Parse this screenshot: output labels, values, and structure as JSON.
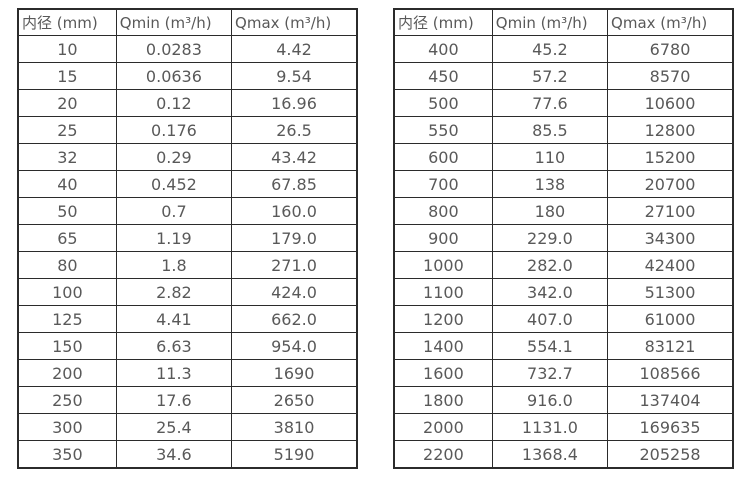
{
  "tables": [
    {
      "name": "flow-rates-small-diameters",
      "headers": [
        "内径 (mm)",
        "Qmin (m³/h)",
        "Qmax (m³/h)"
      ],
      "rows": [
        [
          "10",
          "0.0283",
          "4.42"
        ],
        [
          "15",
          "0.0636",
          "9.54"
        ],
        [
          "20",
          "0.12",
          "16.96"
        ],
        [
          "25",
          "0.176",
          "26.5"
        ],
        [
          "32",
          "0.29",
          "43.42"
        ],
        [
          "40",
          "0.452",
          "67.85"
        ],
        [
          "50",
          "0.7",
          "160.0"
        ],
        [
          "65",
          "1.19",
          "179.0"
        ],
        [
          "80",
          "1.8",
          "271.0"
        ],
        [
          "100",
          "2.82",
          "424.0"
        ],
        [
          "125",
          "4.41",
          "662.0"
        ],
        [
          "150",
          "6.63",
          "954.0"
        ],
        [
          "200",
          "11.3",
          "1690"
        ],
        [
          "250",
          "17.6",
          "2650"
        ],
        [
          "300",
          "25.4",
          "3810"
        ],
        [
          "350",
          "34.6",
          "5190"
        ]
      ]
    },
    {
      "name": "flow-rates-large-diameters",
      "headers": [
        "内径 (mm)",
        "Qmin (m³/h)",
        "Qmax (m³/h)"
      ],
      "rows": [
        [
          "400",
          "45.2",
          "6780"
        ],
        [
          "450",
          "57.2",
          "8570"
        ],
        [
          "500",
          "77.6",
          "10600"
        ],
        [
          "550",
          "85.5",
          "12800"
        ],
        [
          "600",
          "110",
          "15200"
        ],
        [
          "700",
          "138",
          "20700"
        ],
        [
          "800",
          "180",
          "27100"
        ],
        [
          "900",
          "229.0",
          "34300"
        ],
        [
          "1000",
          "282.0",
          "42400"
        ],
        [
          "1100",
          "342.0",
          "51300"
        ],
        [
          "1200",
          "407.0",
          "61000"
        ],
        [
          "1400",
          "554.1",
          "83121"
        ],
        [
          "1600",
          "732.7",
          "108566"
        ],
        [
          "1800",
          "916.0",
          "137404"
        ],
        [
          "2000",
          "1131.0",
          "169635"
        ],
        [
          "2200",
          "1368.4",
          "205258"
        ]
      ]
    }
  ],
  "colors": {
    "border": "#2b2b2b",
    "text": "#595959",
    "background": "#ffffff"
  }
}
